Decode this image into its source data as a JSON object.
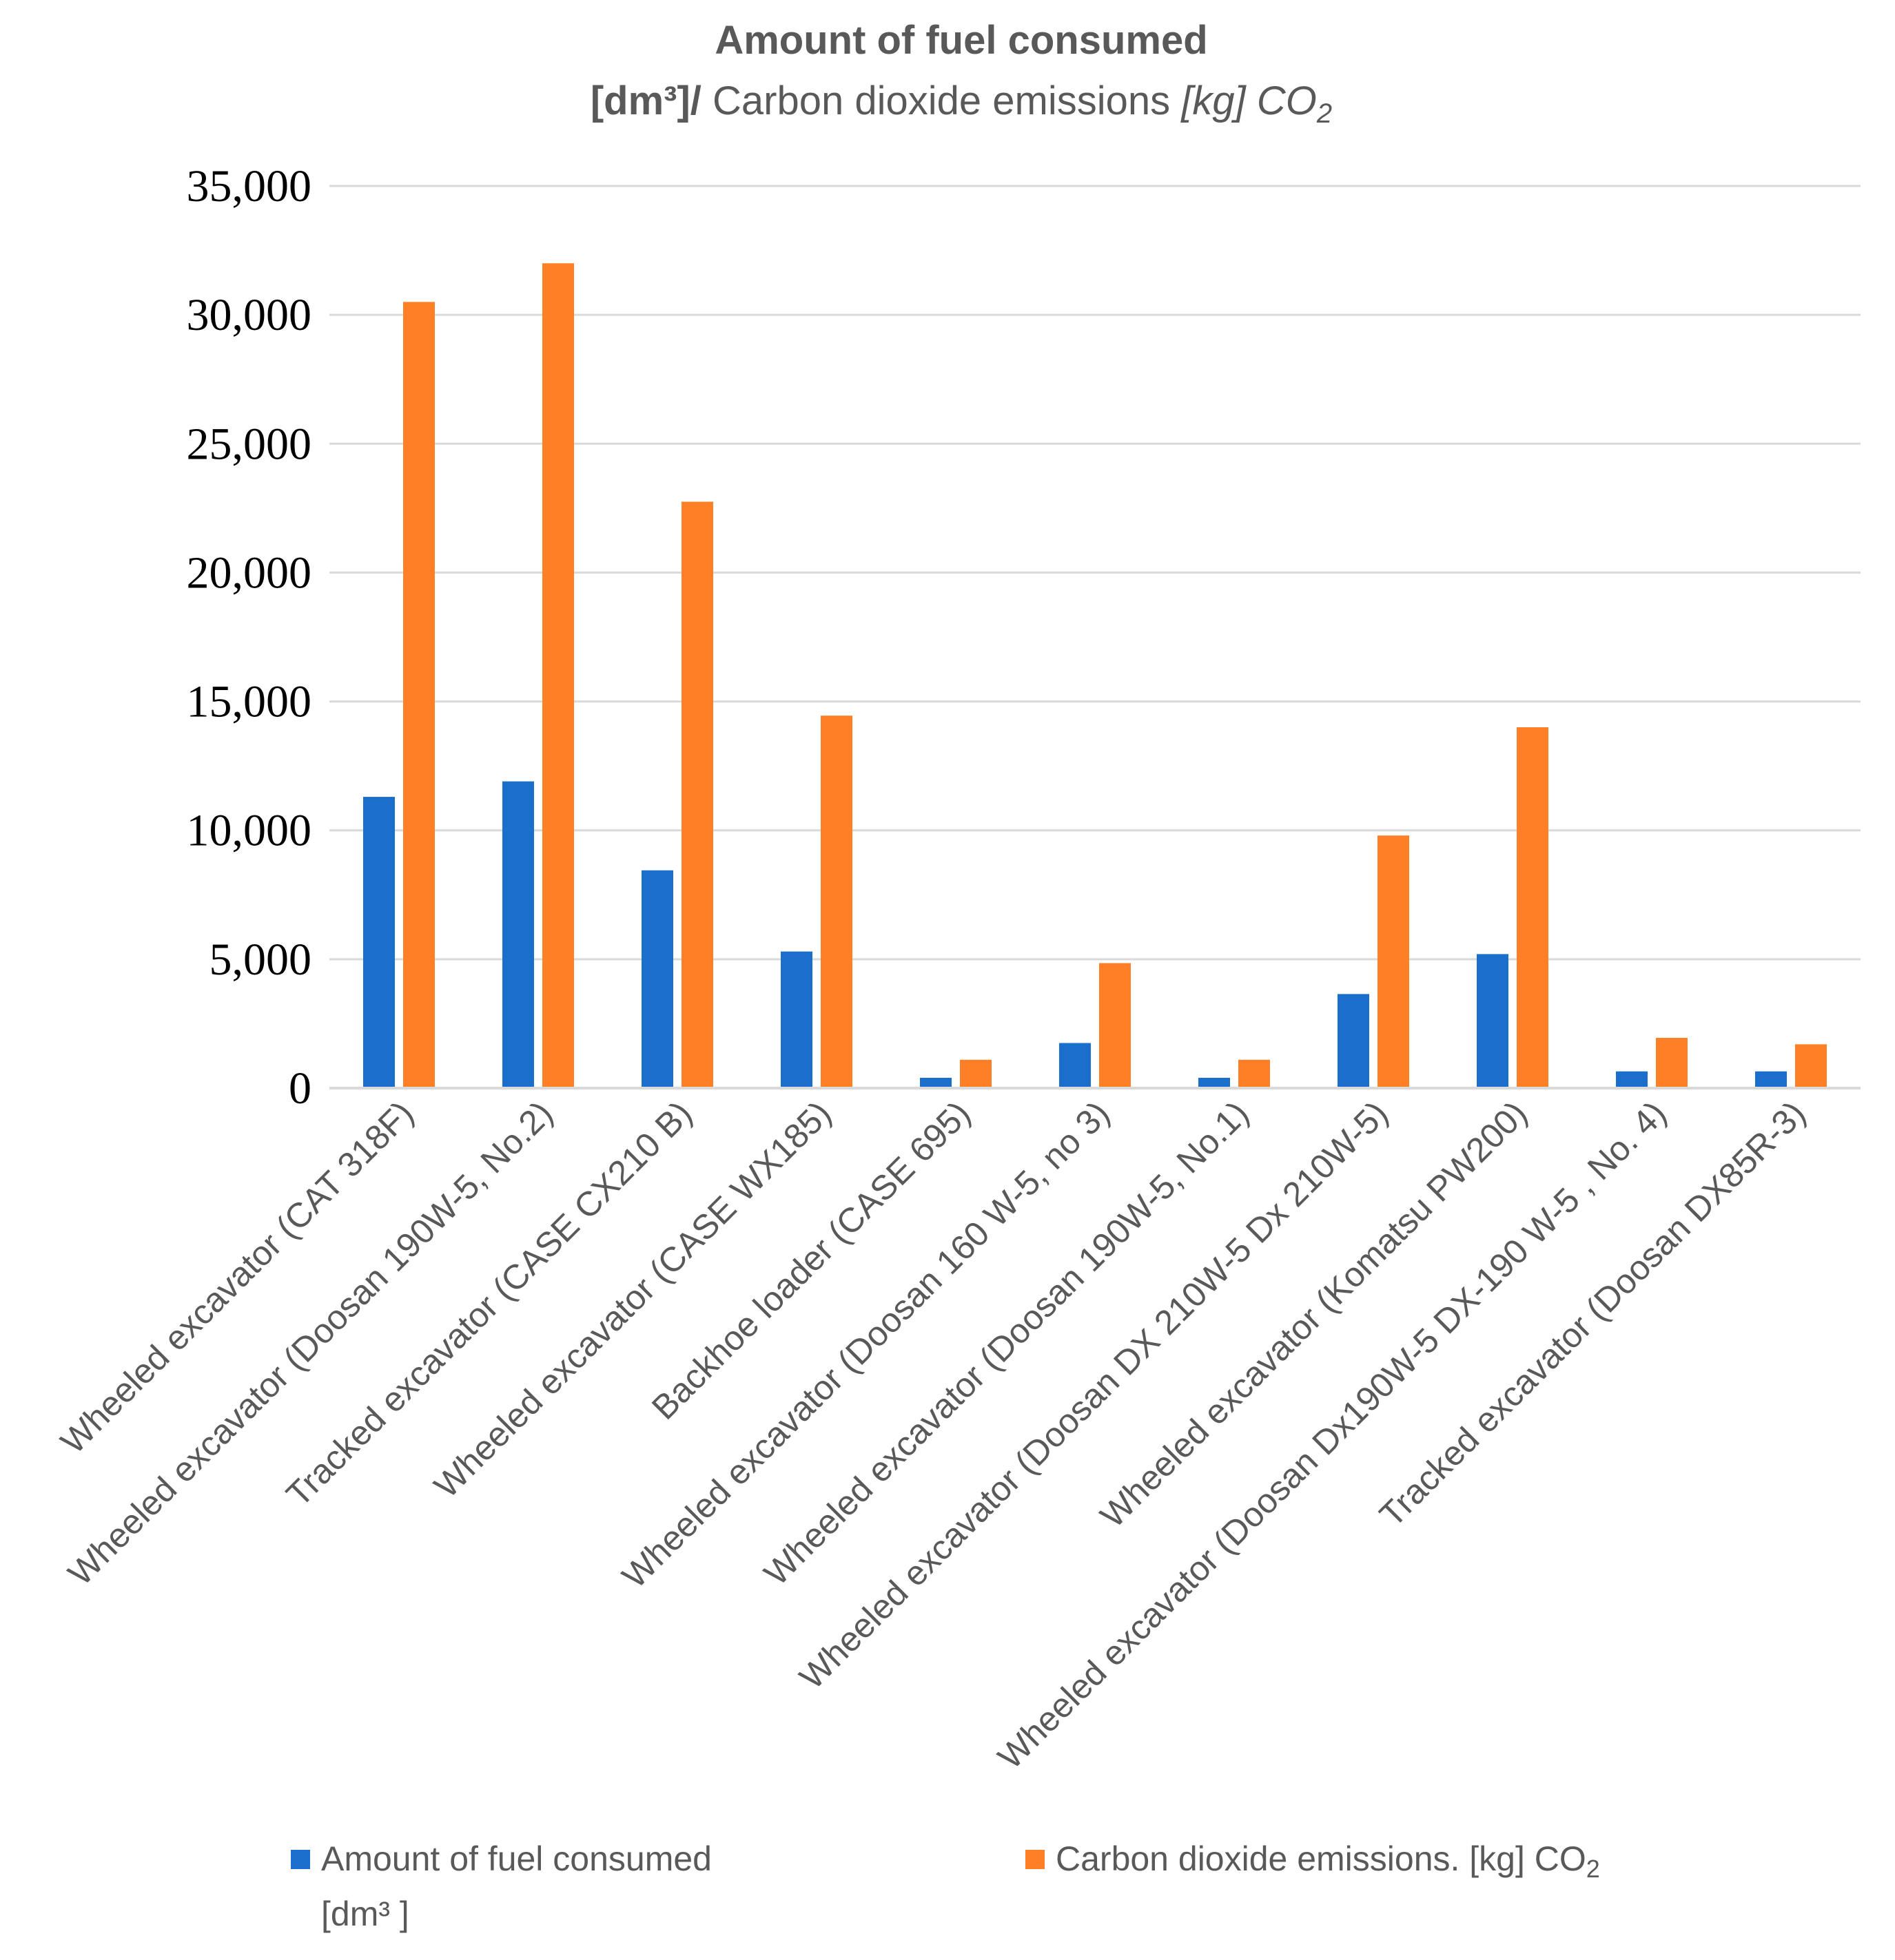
{
  "chart_data": {
    "type": "bar",
    "title": "Amount of fuel consumed",
    "subtitle_unit_bold": "[dm³]/",
    "subtitle_text": " Carbon dioxide emissions ",
    "subtitle_unit_italic": "[kg] CO",
    "subtitle_sub": "2",
    "xlabel": "",
    "ylabel": "",
    "ylim": [
      0,
      35000
    ],
    "yticks": [
      0,
      5000,
      10000,
      15000,
      20000,
      25000,
      30000,
      35000
    ],
    "ytick_labels": [
      "0",
      "5,000",
      "10,000",
      "15,000",
      "20,000",
      "25,000",
      "30,000",
      "35,000"
    ],
    "grid": true,
    "legend_position": "bottom",
    "categories": [
      "Wheeled excavator (CAT 318F)",
      "Wheeled excavator (Doosan 190W-5, No.2)",
      "Tracked excavator (CASE CX210 B)",
      "Wheeled excavator (CASE WX185)",
      "Backhoe loader  (CASE 695)",
      "Wheeled excavator (Doosan 160 W-5, no 3)",
      "Wheeled excavator (Doosan 190W-5, No.1)",
      "Wheeled excavator (Doosan DX 210W-5 Dx 210W-5)",
      "Wheeled excavator (Komatsu PW200)",
      "Wheeled excavator (Doosan Dx190W-5 DX-190 W-5 , No. 4)",
      "Tracked excavator (Doosan DX85R-3)"
    ],
    "series": [
      {
        "name": "Amount of fuel consumed",
        "legend_line2": "[dm³ ]",
        "color": "#1a6fcc",
        "values": [
          11300,
          11900,
          8450,
          5300,
          400,
          1750,
          400,
          3650,
          5200,
          650,
          650
        ]
      },
      {
        "name": "Carbon dioxide emissions. [kg] CO",
        "legend_sub": "2",
        "color": "#ff7f27",
        "values": [
          30500,
          32000,
          22750,
          14450,
          1100,
          4850,
          1100,
          9800,
          14000,
          1950,
          1700
        ]
      }
    ]
  }
}
